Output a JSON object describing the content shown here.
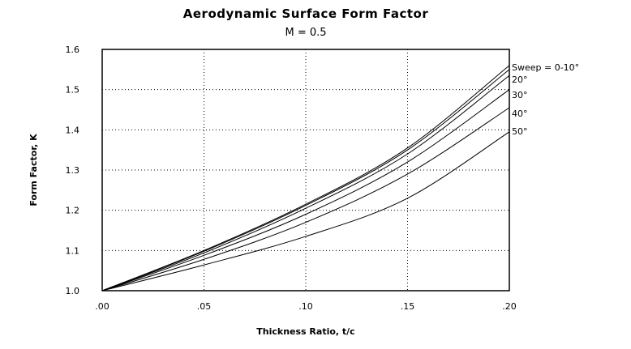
{
  "chart_data": {
    "type": "line",
    "title": "Aerodynamic Surface Form Factor",
    "subtitle": "M = 0.5",
    "xlabel": "Thickness Ratio, t/c",
    "ylabel": "Form Factor, K",
    "xlim": [
      0,
      0.2
    ],
    "ylim": [
      1.0,
      1.6
    ],
    "x_ticks": [
      0,
      0.05,
      0.1,
      0.15,
      0.2
    ],
    "x_tick_labels": [
      ".00",
      ".05",
      ".10",
      ".15",
      ".20"
    ],
    "y_ticks": [
      1.0,
      1.1,
      1.2,
      1.3,
      1.4,
      1.5,
      1.6
    ],
    "y_tick_labels": [
      "1.0",
      "1.1",
      "1.2",
      "1.3",
      "1.4",
      "1.5",
      "1.6"
    ],
    "grid": true,
    "x": [
      0,
      0.05,
      0.1,
      0.15,
      0.2
    ],
    "series": [
      {
        "name": "Sweep = 0-10°",
        "values": [
          1.0,
          1.1,
          1.215,
          1.355,
          1.56
        ]
      },
      {
        "name": "Sweep = 0-10°",
        "values": [
          1.0,
          1.098,
          1.212,
          1.35,
          1.55
        ]
      },
      {
        "name": "20°",
        "values": [
          1.0,
          1.094,
          1.205,
          1.34,
          1.535
        ]
      },
      {
        "name": "30°",
        "values": [
          1.0,
          1.088,
          1.19,
          1.32,
          1.5
        ]
      },
      {
        "name": "40°",
        "values": [
          1.0,
          1.078,
          1.17,
          1.29,
          1.455
        ]
      },
      {
        "name": "50°",
        "values": [
          1.0,
          1.064,
          1.135,
          1.23,
          1.395
        ]
      }
    ],
    "series_labels": [
      {
        "text": "Sweep = 0-10°",
        "y": 1.556
      },
      {
        "text": "20°",
        "y": 1.526
      },
      {
        "text": "30°",
        "y": 1.487
      },
      {
        "text": "40°",
        "y": 1.441
      },
      {
        "text": "50°",
        "y": 1.397
      }
    ]
  }
}
